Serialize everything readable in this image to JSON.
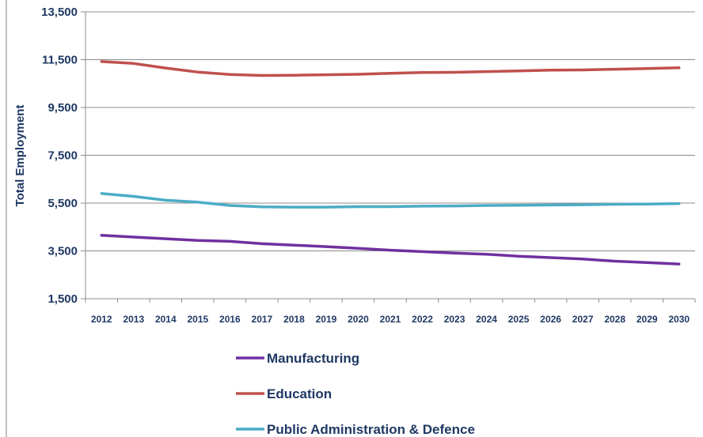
{
  "chart_data": {
    "type": "line",
    "title": "",
    "xlabel": "",
    "ylabel": "Total Employment",
    "x": [
      2012,
      2013,
      2014,
      2015,
      2016,
      2017,
      2018,
      2019,
      2020,
      2021,
      2022,
      2023,
      2024,
      2025,
      2026,
      2027,
      2028,
      2029,
      2030
    ],
    "x_tick_labels": [
      "2012",
      "2013",
      "2014",
      "2015",
      "2016",
      "2017",
      "2018",
      "2019",
      "2020",
      "2021",
      "2022",
      "2023",
      "2024",
      "2025",
      "2026",
      "2027",
      "2028",
      "2029",
      "2030"
    ],
    "y_ticks": [
      1500,
      3500,
      5500,
      7500,
      9500,
      11500,
      13500
    ],
    "y_tick_labels": [
      "1,500",
      "3,500",
      "5,500",
      "7,500",
      "9,500",
      "11,500",
      "13,500"
    ],
    "ylim": [
      1500,
      13500
    ],
    "grid": true,
    "legend_position": "bottom",
    "series": [
      {
        "name": "Manufacturing",
        "color": "#7030a0",
        "values": [
          4150,
          4080,
          4010,
          3940,
          3900,
          3800,
          3740,
          3680,
          3610,
          3530,
          3470,
          3410,
          3360,
          3280,
          3220,
          3160,
          3070,
          3010,
          2950
        ]
      },
      {
        "name": "Education",
        "color": "#c0504d",
        "values": [
          11420,
          11340,
          11150,
          10980,
          10880,
          10840,
          10850,
          10870,
          10890,
          10930,
          10960,
          10970,
          11000,
          11030,
          11060,
          11070,
          11100,
          11130,
          11160
        ]
      },
      {
        "name": "Public Administration & Defence",
        "color": "#4bacc6",
        "values": [
          5900,
          5780,
          5620,
          5540,
          5400,
          5340,
          5330,
          5330,
          5350,
          5350,
          5370,
          5380,
          5400,
          5410,
          5420,
          5430,
          5450,
          5460,
          5480
        ]
      }
    ]
  }
}
